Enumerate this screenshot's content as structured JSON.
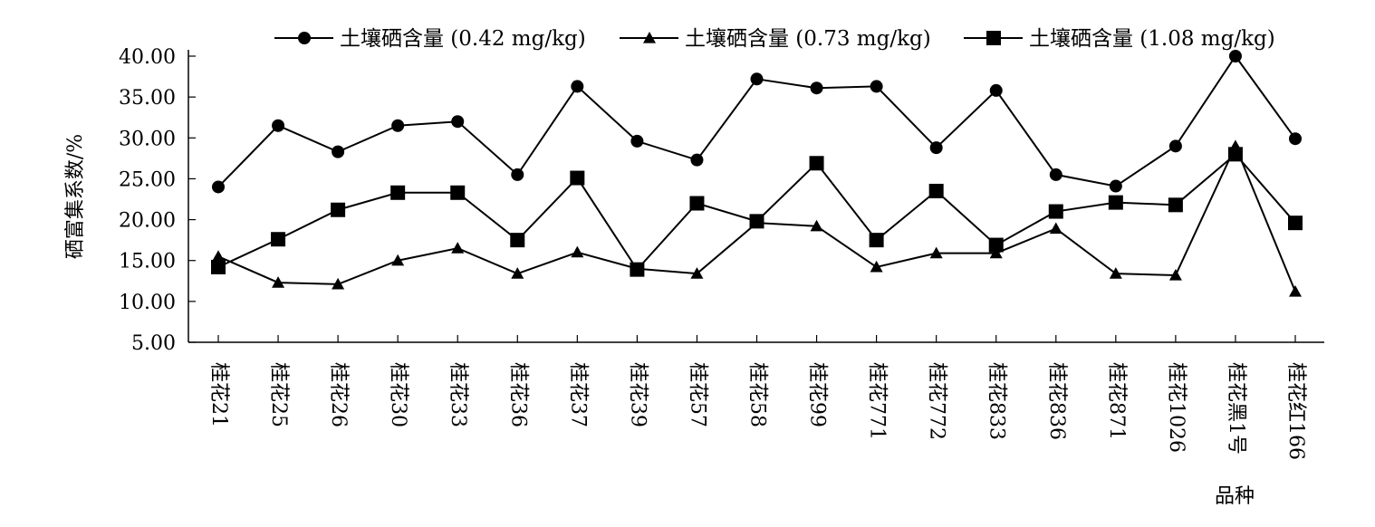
{
  "chart_data": {
    "type": "line",
    "title": "",
    "xlabel": "品种",
    "ylabel": "硒富集系数/%",
    "ylim": [
      5,
      40
    ],
    "yticks": [
      "5.00",
      "10.00",
      "15.00",
      "20.00",
      "25.00",
      "30.00",
      "35.00",
      "40.00"
    ],
    "grid": false,
    "legend_position": "top",
    "categories": [
      "桂花21",
      "桂花25",
      "桂花26",
      "桂花30",
      "桂花33",
      "桂花36",
      "桂花37",
      "桂花39",
      "桂花57",
      "桂花58",
      "桂花99",
      "桂花771",
      "桂花772",
      "桂花833",
      "桂花836",
      "桂花871",
      "桂花1026",
      "桂花黑1号",
      "桂花红166"
    ],
    "series": [
      {
        "name": "土壤硒含量 (0.42 mg/kg)",
        "marker": "circle",
        "values": [
          24.0,
          31.5,
          28.3,
          31.5,
          32.0,
          25.5,
          36.3,
          29.6,
          27.3,
          37.2,
          36.1,
          36.3,
          28.8,
          35.8,
          25.5,
          24.1,
          29.0,
          40.0,
          29.9
        ]
      },
      {
        "name": "土壤硒含量 (0.73 mg/kg)",
        "marker": "triangle",
        "values": [
          15.5,
          12.3,
          12.1,
          15.0,
          16.5,
          13.4,
          16.0,
          14.0,
          13.4,
          19.6,
          19.2,
          14.2,
          15.9,
          15.9,
          18.9,
          13.4,
          13.2,
          29.0,
          11.2
        ]
      },
      {
        "name": "土壤硒含量 (1.08 mg/kg)",
        "marker": "square",
        "values": [
          14.2,
          17.6,
          21.2,
          23.3,
          23.3,
          17.5,
          25.1,
          13.9,
          22.0,
          19.8,
          26.9,
          17.5,
          23.5,
          16.9,
          21.0,
          22.1,
          21.8,
          28.0,
          19.6
        ]
      }
    ]
  }
}
